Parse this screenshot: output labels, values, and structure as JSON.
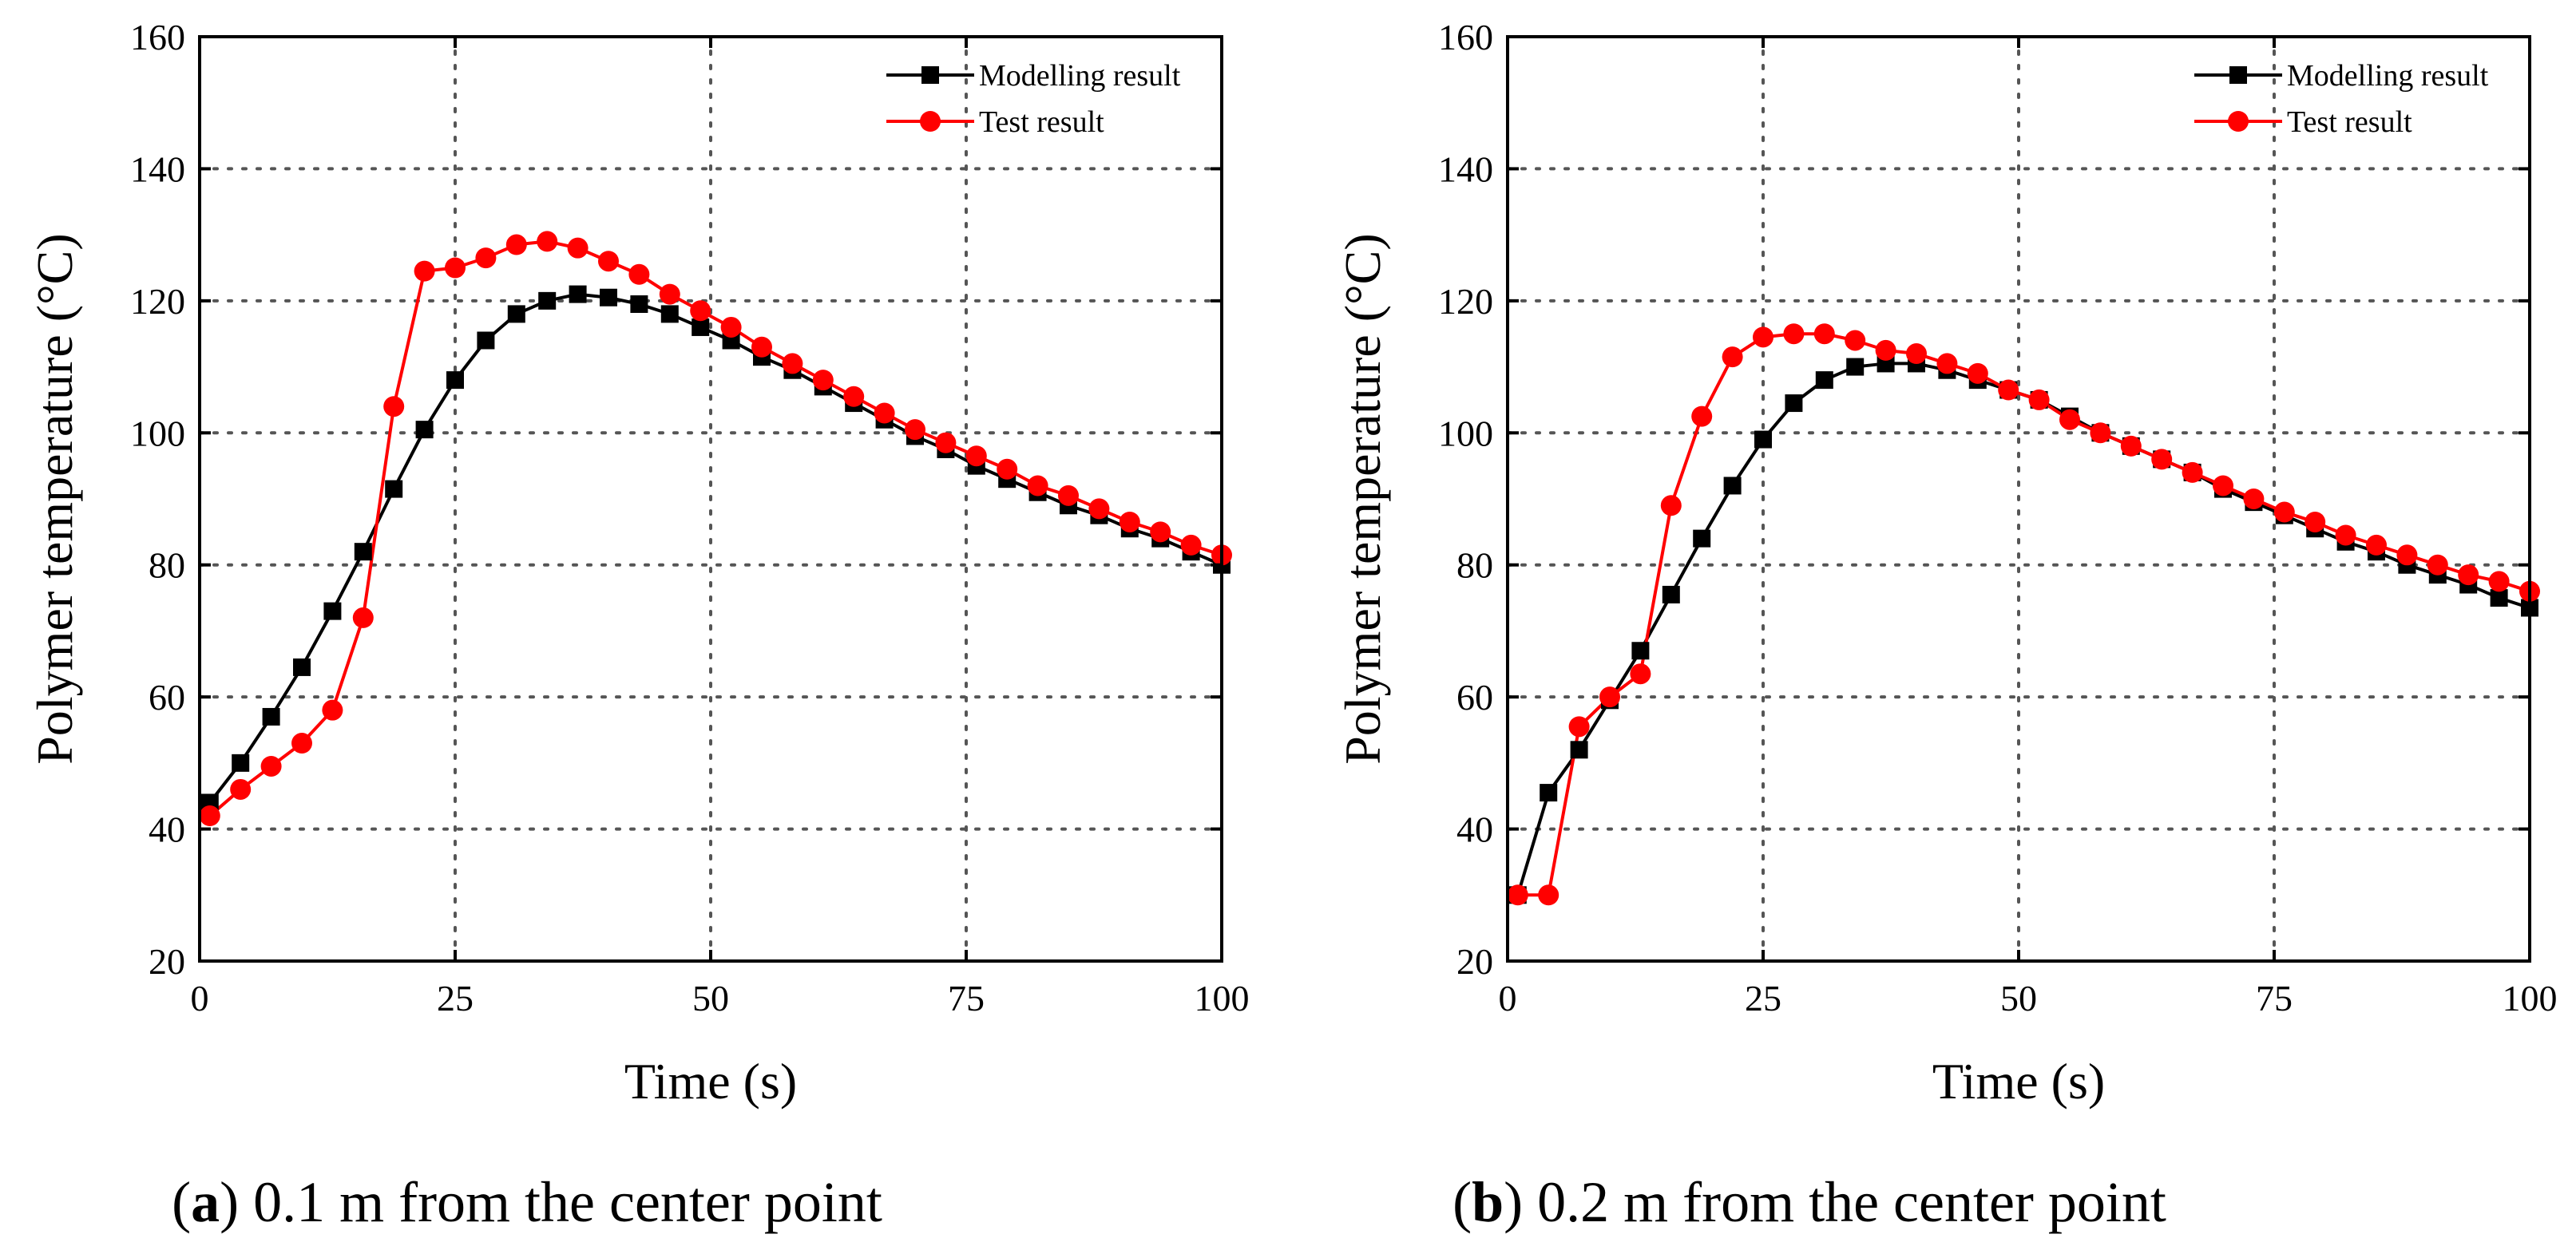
{
  "figure": {
    "captions": [
      {
        "letter": "a",
        "text": " 0.1 m from the center point"
      },
      {
        "letter": "b",
        "text": " 0.2 m from the center point"
      }
    ]
  },
  "colors": {
    "modelling": "#000000",
    "test": "#ff0000",
    "grid": "#555555",
    "axis": "#000000"
  },
  "chart_data": [
    {
      "type": "line",
      "title": "",
      "xlabel": "Time (s)",
      "ylabel": "Polymer temperature (°C)",
      "xlim": [
        0,
        100
      ],
      "ylim": [
        20,
        160
      ],
      "xticks": [
        0,
        25,
        50,
        75,
        100
      ],
      "yticks": [
        20,
        40,
        60,
        80,
        100,
        120,
        140,
        160
      ],
      "grid": true,
      "legend_position": "top-right",
      "series": [
        {
          "name": "Modelling result",
          "marker": "square",
          "color": "#000000",
          "x": [
            1,
            4,
            7,
            10,
            13,
            16,
            19,
            22,
            25,
            28,
            31,
            34,
            37,
            40,
            43,
            46,
            49,
            52,
            55,
            58,
            61,
            64,
            67,
            70,
            73,
            76,
            79,
            82,
            85,
            88,
            91,
            94,
            97,
            100
          ],
          "y": [
            44,
            50,
            57,
            64.5,
            73,
            82,
            91.5,
            100.5,
            108,
            114,
            118,
            120,
            121,
            120.5,
            119.5,
            118,
            116,
            114,
            111.5,
            109.5,
            107,
            104.5,
            102,
            99.5,
            97.5,
            95,
            93,
            91,
            89,
            87.5,
            85.5,
            84,
            82,
            80
          ]
        },
        {
          "name": "Test result",
          "marker": "circle",
          "color": "#ff0000",
          "x": [
            1,
            4,
            7,
            10,
            13,
            16,
            19,
            22,
            25,
            28,
            31,
            34,
            37,
            40,
            43,
            46,
            49,
            52,
            55,
            58,
            61,
            64,
            67,
            70,
            73,
            76,
            79,
            82,
            85,
            88,
            91,
            94,
            97,
            100
          ],
          "y": [
            42,
            46,
            49.5,
            53,
            58,
            72,
            104,
            124.5,
            125,
            126.5,
            128.5,
            129,
            128,
            126,
            124,
            121,
            118.5,
            116,
            113,
            110.5,
            108,
            105.5,
            103,
            100.5,
            98.5,
            96.5,
            94.5,
            92,
            90.5,
            88.5,
            86.5,
            85,
            83,
            81.5
          ]
        }
      ]
    },
    {
      "type": "line",
      "title": "",
      "xlabel": "Time (s)",
      "ylabel": "Polymer temperature (°C)",
      "xlim": [
        0,
        100
      ],
      "ylim": [
        20,
        160
      ],
      "xticks": [
        0,
        25,
        50,
        75,
        100
      ],
      "yticks": [
        20,
        40,
        60,
        80,
        100,
        120,
        140,
        160
      ],
      "grid": true,
      "legend_position": "top-right",
      "series": [
        {
          "name": "Modelling result",
          "marker": "square",
          "color": "#000000",
          "x": [
            1,
            4,
            7,
            10,
            13,
            16,
            19,
            22,
            25,
            28,
            31,
            34,
            37,
            40,
            43,
            46,
            49,
            52,
            55,
            58,
            61,
            64,
            67,
            70,
            73,
            76,
            79,
            82,
            85,
            88,
            91,
            94,
            97,
            100
          ],
          "y": [
            30,
            45.5,
            52,
            59.5,
            67,
            75.5,
            84,
            92,
            99,
            104.5,
            108,
            110,
            110.5,
            110.5,
            109.5,
            108,
            106.5,
            105,
            102.5,
            100,
            98,
            96,
            94,
            91.5,
            89.5,
            87.5,
            85.5,
            83.5,
            82,
            80,
            78.5,
            77,
            75,
            73.5
          ]
        },
        {
          "name": "Test result",
          "marker": "circle",
          "color": "#ff0000",
          "x": [
            1,
            4,
            7,
            10,
            13,
            16,
            19,
            22,
            25,
            28,
            31,
            34,
            37,
            40,
            43,
            46,
            49,
            52,
            55,
            58,
            61,
            64,
            67,
            70,
            73,
            76,
            79,
            82,
            85,
            88,
            91,
            94,
            97,
            100
          ],
          "y": [
            30,
            30,
            55.5,
            60,
            63.5,
            89,
            102.5,
            111.5,
            114.5,
            115,
            115,
            114,
            112.5,
            112,
            110.5,
            109,
            106.5,
            105,
            102,
            100,
            98,
            96,
            94,
            92,
            90,
            88,
            86.5,
            84.5,
            83,
            81.5,
            80,
            78.5,
            77.5,
            76
          ]
        }
      ]
    }
  ]
}
